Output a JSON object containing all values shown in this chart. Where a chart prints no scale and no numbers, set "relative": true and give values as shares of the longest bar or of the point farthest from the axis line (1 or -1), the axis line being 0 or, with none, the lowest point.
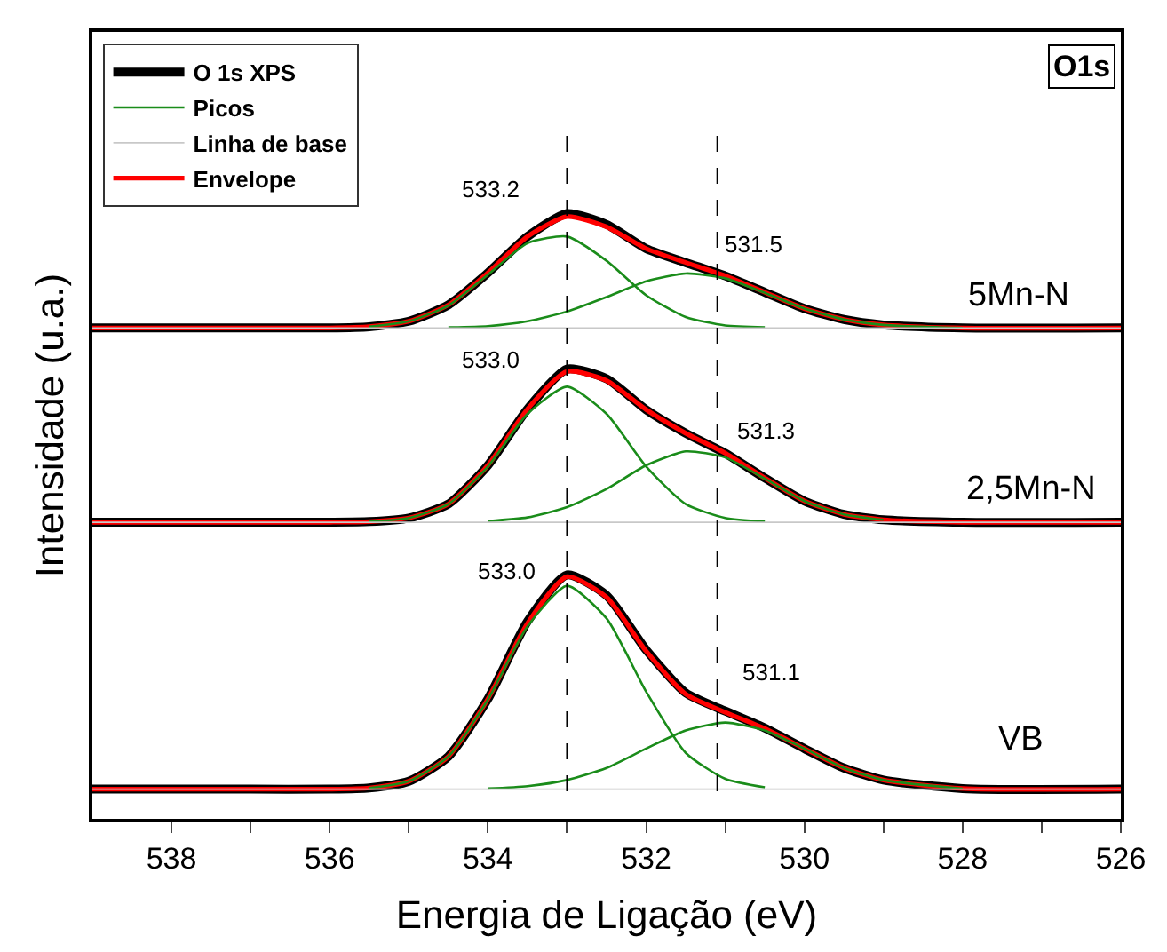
{
  "chart_data": {
    "type": "line",
    "relative": true,
    "xlabel": "Energia de Ligação (eV)",
    "ylabel": "Intensidade (u.a.)",
    "xlim": [
      539,
      526
    ],
    "xticks": [
      538,
      {
        "value": 537,
        "label": null
      },
      536,
      {
        "value": 535,
        "label": null
      },
      534,
      {
        "value": 533,
        "label": null
      },
      532,
      {
        "value": 531,
        "label": null
      },
      530,
      {
        "value": 529,
        "label": null
      },
      528,
      {
        "value": 527,
        "label": null
      },
      526
    ],
    "legend": "top left",
    "marker": "none",
    "line_style": "solid",
    "series": [
      {
        "name": "O 1s XPS",
        "color": "#000000",
        "x": [
          539,
          537,
          536,
          535.5,
          535,
          534.5,
          534,
          533.5,
          533,
          532.5,
          532,
          531.5,
          531,
          530.5,
          530,
          529.5,
          529,
          528,
          526
        ],
        "values": [
          0.811,
          0.811,
          0.811,
          0.813,
          0.822,
          0.849,
          0.902,
          0.962,
          1.0,
          0.982,
          0.942,
          0.919,
          0.897,
          0.87,
          0.843,
          0.825,
          0.816,
          0.811,
          0.811
        ]
      },
      {
        "name": "Picos",
        "color": "#1a8c1a",
        "x": [
          535.5,
          535,
          534.5,
          534,
          533.5,
          533,
          532.5,
          532,
          531.5,
          531,
          530.5
        ],
        "values": [
          0.813,
          0.822,
          0.848,
          0.899,
          0.951,
          0.962,
          0.922,
          0.865,
          0.829,
          0.815,
          0.812
        ]
      },
      {
        "name": "Linha de base",
        "color": "#c8c8c8",
        "x": [
          539,
          526
        ],
        "values": [
          0.811,
          0.811
        ]
      },
      {
        "name": "Envelope",
        "color": "#ff0000",
        "x": [
          539,
          537,
          536,
          535.5,
          535,
          534.5,
          534,
          533.5,
          533,
          532.5,
          532,
          531.5,
          531,
          530.5,
          530,
          529.5,
          529,
          528,
          526
        ],
        "values": [
          0.811,
          0.811,
          0.811,
          0.813,
          0.822,
          0.849,
          0.902,
          0.962,
          0.995,
          0.978,
          0.942,
          0.919,
          0.897,
          0.87,
          0.843,
          0.825,
          0.816,
          0.811,
          0.811
        ]
      },
      {
        "color": "#1a8c1a",
        "x": [
          534.5,
          534,
          533.5,
          533,
          532.5,
          532,
          531.5,
          531,
          530.5,
          530,
          529.5,
          529,
          528
        ],
        "values": [
          0.812,
          0.814,
          0.822,
          0.838,
          0.862,
          0.888,
          0.901,
          0.893,
          0.869,
          0.843,
          0.825,
          0.816,
          0.811
        ]
      },
      {
        "color": "#c8c8c8",
        "x": [
          539,
          526
        ],
        "values": [
          0.49,
          0.49
        ]
      },
      {
        "color": "#1a8c1a",
        "x": [
          535.5,
          535,
          534.5,
          534,
          533.5,
          533,
          532.5,
          532,
          531.5,
          531,
          530.5
        ],
        "values": [
          0.491,
          0.497,
          0.52,
          0.582,
          0.669,
          0.714,
          0.669,
          0.582,
          0.52,
          0.497,
          0.491
        ]
      },
      {
        "color": "#1a8c1a",
        "x": [
          534,
          533.5,
          533,
          532.5,
          532,
          531.5,
          531,
          530.5,
          530,
          529.5,
          529
        ],
        "values": [
          0.492,
          0.498,
          0.515,
          0.545,
          0.584,
          0.607,
          0.597,
          0.562,
          0.525,
          0.503,
          0.494
        ]
      },
      {
        "color": "#000000",
        "x": [
          539,
          537,
          536,
          535.5,
          535,
          534.5,
          534,
          533.5,
          533,
          532.5,
          532,
          531.5,
          531,
          530.5,
          530,
          529.5,
          529,
          528,
          526
        ],
        "values": [
          0.49,
          0.49,
          0.49,
          0.491,
          0.497,
          0.52,
          0.584,
          0.677,
          0.743,
          0.727,
          0.676,
          0.637,
          0.604,
          0.563,
          0.525,
          0.503,
          0.494,
          0.49,
          0.49
        ]
      },
      {
        "color": "#ff0000",
        "x": [
          539,
          537,
          536,
          535.5,
          535,
          534.5,
          534,
          533.5,
          533,
          532.5,
          532,
          531.5,
          531,
          530.5,
          530,
          529.5,
          529,
          528,
          526
        ],
        "values": [
          0.49,
          0.49,
          0.49,
          0.491,
          0.497,
          0.52,
          0.584,
          0.677,
          0.739,
          0.724,
          0.676,
          0.637,
          0.604,
          0.563,
          0.525,
          0.503,
          0.494,
          0.49,
          0.49
        ]
      },
      {
        "color": "#c8c8c8",
        "x": [
          539,
          526
        ],
        "values": [
          0.049,
          0.049
        ]
      },
      {
        "color": "#1a8c1a",
        "x": [
          535.5,
          535,
          534.5,
          534,
          533.5,
          533,
          532.5,
          532,
          531.5,
          531,
          530.5
        ],
        "values": [
          0.051,
          0.062,
          0.103,
          0.197,
          0.318,
          0.385,
          0.331,
          0.21,
          0.109,
          0.066,
          0.052
        ]
      },
      {
        "color": "#1a8c1a",
        "x": [
          534,
          533.5,
          533,
          532.5,
          532,
          531.5,
          531,
          530.5,
          530,
          529.5,
          529,
          528
        ],
        "values": [
          0.05,
          0.054,
          0.064,
          0.084,
          0.116,
          0.146,
          0.159,
          0.146,
          0.116,
          0.084,
          0.064,
          0.05
        ]
      },
      {
        "color": "#000000",
        "x": [
          539,
          537,
          536,
          535.5,
          535,
          534.5,
          534,
          533.5,
          533,
          532.5,
          532,
          531.5,
          531,
          530.5,
          530,
          529.5,
          529,
          528,
          526
        ],
        "values": [
          0.049,
          0.049,
          0.049,
          0.051,
          0.062,
          0.103,
          0.198,
          0.326,
          0.403,
          0.369,
          0.279,
          0.208,
          0.178,
          0.15,
          0.116,
          0.084,
          0.064,
          0.05,
          0.049
        ]
      },
      {
        "color": "#ff0000",
        "x": [
          539,
          537,
          536,
          535.5,
          535,
          534.5,
          534,
          533.5,
          533,
          532.5,
          532,
          531.5,
          531,
          530.5,
          530,
          529.5,
          529,
          528,
          526
        ],
        "values": [
          0.049,
          0.049,
          0.049,
          0.051,
          0.062,
          0.103,
          0.198,
          0.323,
          0.4,
          0.366,
          0.277,
          0.206,
          0.176,
          0.149,
          0.116,
          0.084,
          0.064,
          0.05,
          0.049
        ]
      }
    ],
    "ref_lines": [
      {
        "axis": "x",
        "value": 533.0,
        "color": "#000000",
        "line_style": "dashed"
      },
      {
        "axis": "x",
        "value": 531.1,
        "color": "#000000",
        "line_style": "dashed"
      }
    ],
    "annotations": [
      "O1s",
      "533.2",
      "531.5",
      "5Mn-N",
      "533.0",
      "531.3",
      "2,5Mn-N",
      "533.0",
      "531.1",
      "VB"
    ]
  }
}
